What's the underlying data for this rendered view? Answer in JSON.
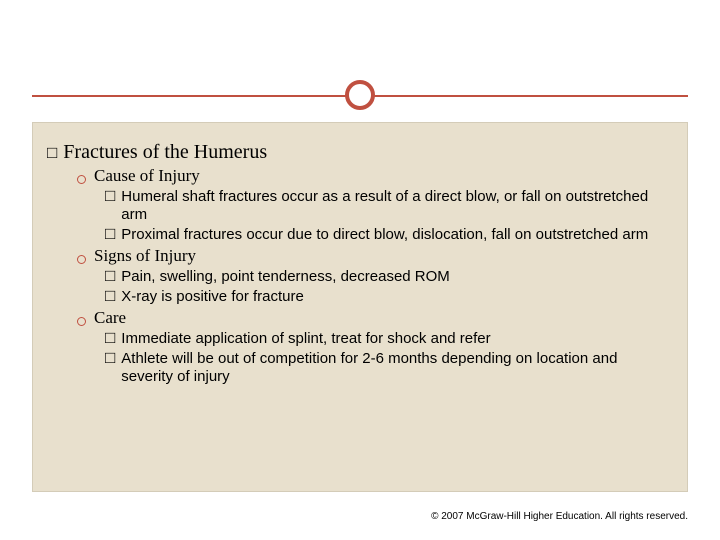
{
  "colors": {
    "accent": "#c05040",
    "panel_bg": "#e8e0cd",
    "panel_border": "#d4ccb8",
    "page_bg": "#ffffff"
  },
  "title": "Fractures of the Humerus",
  "sections": [
    {
      "heading": "Cause of Injury",
      "items": [
        "Humeral shaft fractures occur as a result of a direct blow, or fall on outstretched arm",
        "Proximal fractures occur due to direct blow, dislocation, fall on outstretched arm"
      ]
    },
    {
      "heading": "Signs of Injury",
      "items": [
        "Pain, swelling, point tenderness, decreased ROM",
        "X-ray is positive for fracture"
      ]
    },
    {
      "heading": "Care",
      "items": [
        "Immediate application of splint, treat for shock and refer",
        "Athlete will be out of competition for 2-6 months depending on location and severity of injury"
      ]
    }
  ],
  "footer": "© 2007 McGraw-Hill Higher Education. All rights reserved."
}
